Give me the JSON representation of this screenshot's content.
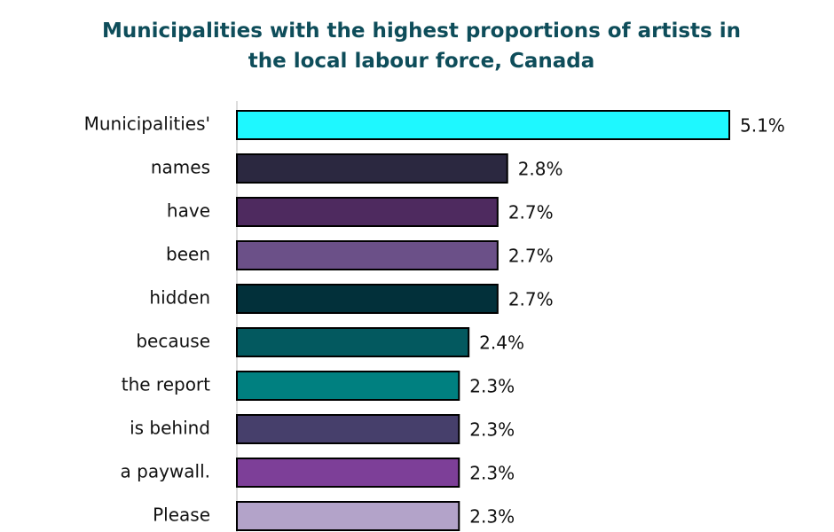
{
  "chart_data": {
    "type": "bar",
    "orientation": "horizontal",
    "title": "Municipalities with the highest proportions of artists in the local labour force, Canada",
    "categories": [
      "Municipalities'",
      "names",
      "have",
      "been",
      "hidden",
      "because",
      "the report",
      "is behind",
      "a paywall.",
      "Please"
    ],
    "values": [
      5.1,
      2.8,
      2.7,
      2.7,
      2.7,
      2.4,
      2.3,
      2.3,
      2.3,
      2.3
    ],
    "value_labels": [
      "5.1%",
      "2.8%",
      "2.7%",
      "2.7%",
      "2.7%",
      "2.4%",
      "2.3%",
      "2.3%",
      "2.3%",
      "2.3%"
    ],
    "colors": [
      "#1ef8ff",
      "#2b2840",
      "#4e2a5f",
      "#6b5088",
      "#02303a",
      "#03595f",
      "#008080",
      "#463f6b",
      "#7d3f98",
      "#b3a3c9"
    ]
  }
}
